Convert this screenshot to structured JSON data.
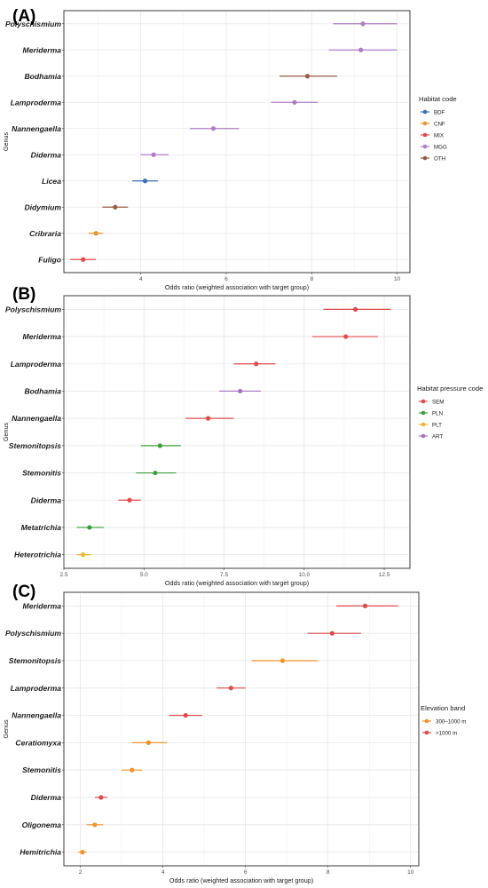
{
  "chart_data": [
    {
      "type": "scatter",
      "panel_label": "(A)",
      "xlabel": "Odds ratio (weighted association with target group)",
      "ylabel": "Genus",
      "xlim": [
        2.2,
        10.3
      ],
      "xticks": [
        4,
        6,
        8,
        10
      ],
      "legend": {
        "title": "Habitat code",
        "position": "right",
        "entries": [
          {
            "code": "BDF",
            "color": "#3B6FB6"
          },
          {
            "code": "CNF",
            "color": "#F0922B"
          },
          {
            "code": "MIX",
            "color": "#E04B4B"
          },
          {
            "code": "MGG",
            "color": "#B07CC6"
          },
          {
            "code": "OTH",
            "color": "#9A5B43"
          }
        ]
      },
      "points": [
        {
          "genus": "Polyschismium",
          "value": 9.2,
          "low": 8.5,
          "high": 10.0,
          "group": "MGG"
        },
        {
          "genus": "Meriderma",
          "value": 9.15,
          "low": 8.4,
          "high": 10.0,
          "group": "MGG"
        },
        {
          "genus": "Bodhamia",
          "value": 7.9,
          "low": 7.25,
          "high": 8.6,
          "group": "OTH"
        },
        {
          "genus": "Lamproderma",
          "value": 7.6,
          "low": 7.05,
          "high": 8.15,
          "group": "MGG"
        },
        {
          "genus": "Nannengaella",
          "value": 5.7,
          "low": 5.15,
          "high": 6.3,
          "group": "MGG"
        },
        {
          "genus": "Diderma",
          "value": 4.3,
          "low": 4.0,
          "high": 4.65,
          "group": "MGG"
        },
        {
          "genus": "Licea",
          "value": 4.1,
          "low": 3.8,
          "high": 4.4,
          "group": "BDF"
        },
        {
          "genus": "Didymium",
          "value": 3.4,
          "low": 3.1,
          "high": 3.7,
          "group": "OTH"
        },
        {
          "genus": "Cribraria",
          "value": 2.95,
          "low": 2.78,
          "high": 3.12,
          "group": "CNF"
        },
        {
          "genus": "Fuligo",
          "value": 2.65,
          "low": 2.35,
          "high": 2.95,
          "group": "MIX"
        }
      ]
    },
    {
      "type": "scatter",
      "panel_label": "(B)",
      "xlabel": "Odds ratio (weighted association with target group)",
      "ylabel": "Genus",
      "xlim": [
        2.5,
        13.3
      ],
      "xticks": [
        2.5,
        5.0,
        7.5,
        10.0,
        12.5
      ],
      "xtick_labels": [
        "2.5",
        "5.0",
        "7.5",
        "10.0",
        "12.5"
      ],
      "legend": {
        "title": "Habitat pressure code",
        "position": "right",
        "entries": [
          {
            "code": "SEM",
            "color": "#E04B4B"
          },
          {
            "code": "PLN",
            "color": "#3E9E3E"
          },
          {
            "code": "PLT",
            "color": "#F2B632"
          },
          {
            "code": "ART",
            "color": "#A572BE"
          }
        ]
      },
      "points": [
        {
          "genus": "Polyschismium",
          "value": 11.6,
          "low": 10.6,
          "high": 12.7,
          "group": "SEM"
        },
        {
          "genus": "Meriderma",
          "value": 11.3,
          "low": 10.25,
          "high": 12.3,
          "group": "SEM"
        },
        {
          "genus": "Lamproderma",
          "value": 8.5,
          "low": 7.8,
          "high": 9.1,
          "group": "SEM"
        },
        {
          "genus": "Bodhamia",
          "value": 8.0,
          "low": 7.35,
          "high": 8.65,
          "group": "ART"
        },
        {
          "genus": "Nannengaella",
          "value": 7.0,
          "low": 6.3,
          "high": 7.8,
          "group": "SEM"
        },
        {
          "genus": "Stemonitopsis",
          "value": 5.5,
          "low": 4.9,
          "high": 6.15,
          "group": "PLN"
        },
        {
          "genus": "Stemonitis",
          "value": 5.35,
          "low": 4.75,
          "high": 6.0,
          "group": "PLN"
        },
        {
          "genus": "Diderma",
          "value": 4.55,
          "low": 4.2,
          "high": 4.9,
          "group": "SEM"
        },
        {
          "genus": "Metatrichia",
          "value": 3.3,
          "low": 2.9,
          "high": 3.75,
          "group": "PLN"
        },
        {
          "genus": "Heterotrichia",
          "value": 3.1,
          "low": 2.9,
          "high": 3.35,
          "group": "PLT"
        }
      ]
    },
    {
      "type": "scatter",
      "panel_label": "(C)",
      "xlabel": "Odds ratio (weighted association with target group)",
      "ylabel": "Genus",
      "xlim": [
        1.6,
        10.2
      ],
      "xticks": [
        2,
        4,
        6,
        8,
        10
      ],
      "legend": {
        "title": "Elevation band",
        "position": "right",
        "entries": [
          {
            "code": "300–1000 m",
            "color": "#F0922B"
          },
          {
            "code": ">1000 m",
            "color": "#E04B4B"
          }
        ]
      },
      "points": [
        {
          "genus": "Meriderma",
          "value": 8.9,
          "low": 8.2,
          "high": 9.7,
          "group": ">1000 m"
        },
        {
          "genus": "Polyschismium",
          "value": 8.1,
          "low": 7.5,
          "high": 8.8,
          "group": ">1000 m"
        },
        {
          "genus": "Stemonitopsis",
          "value": 6.9,
          "low": 6.15,
          "high": 7.75,
          "group": "300–1000 m"
        },
        {
          "genus": "Lamproderma",
          "value": 5.65,
          "low": 5.3,
          "high": 6.0,
          "group": ">1000 m"
        },
        {
          "genus": "Nannengaella",
          "value": 4.55,
          "low": 4.15,
          "high": 4.95,
          "group": ">1000 m"
        },
        {
          "genus": "Ceratiomyxa",
          "value": 3.65,
          "low": 3.25,
          "high": 4.1,
          "group": "300–1000 m"
        },
        {
          "genus": "Stemonitis",
          "value": 3.25,
          "low": 3.0,
          "high": 3.5,
          "group": "300–1000 m"
        },
        {
          "genus": "Diderma",
          "value": 2.5,
          "low": 2.35,
          "high": 2.65,
          "group": ">1000 m"
        },
        {
          "genus": "Oligonema",
          "value": 2.35,
          "low": 2.15,
          "high": 2.55,
          "group": "300–1000 m"
        },
        {
          "genus": "Hemitrichia",
          "value": 2.05,
          "low": 1.95,
          "high": 2.15,
          "group": "300–1000 m"
        }
      ]
    }
  ]
}
